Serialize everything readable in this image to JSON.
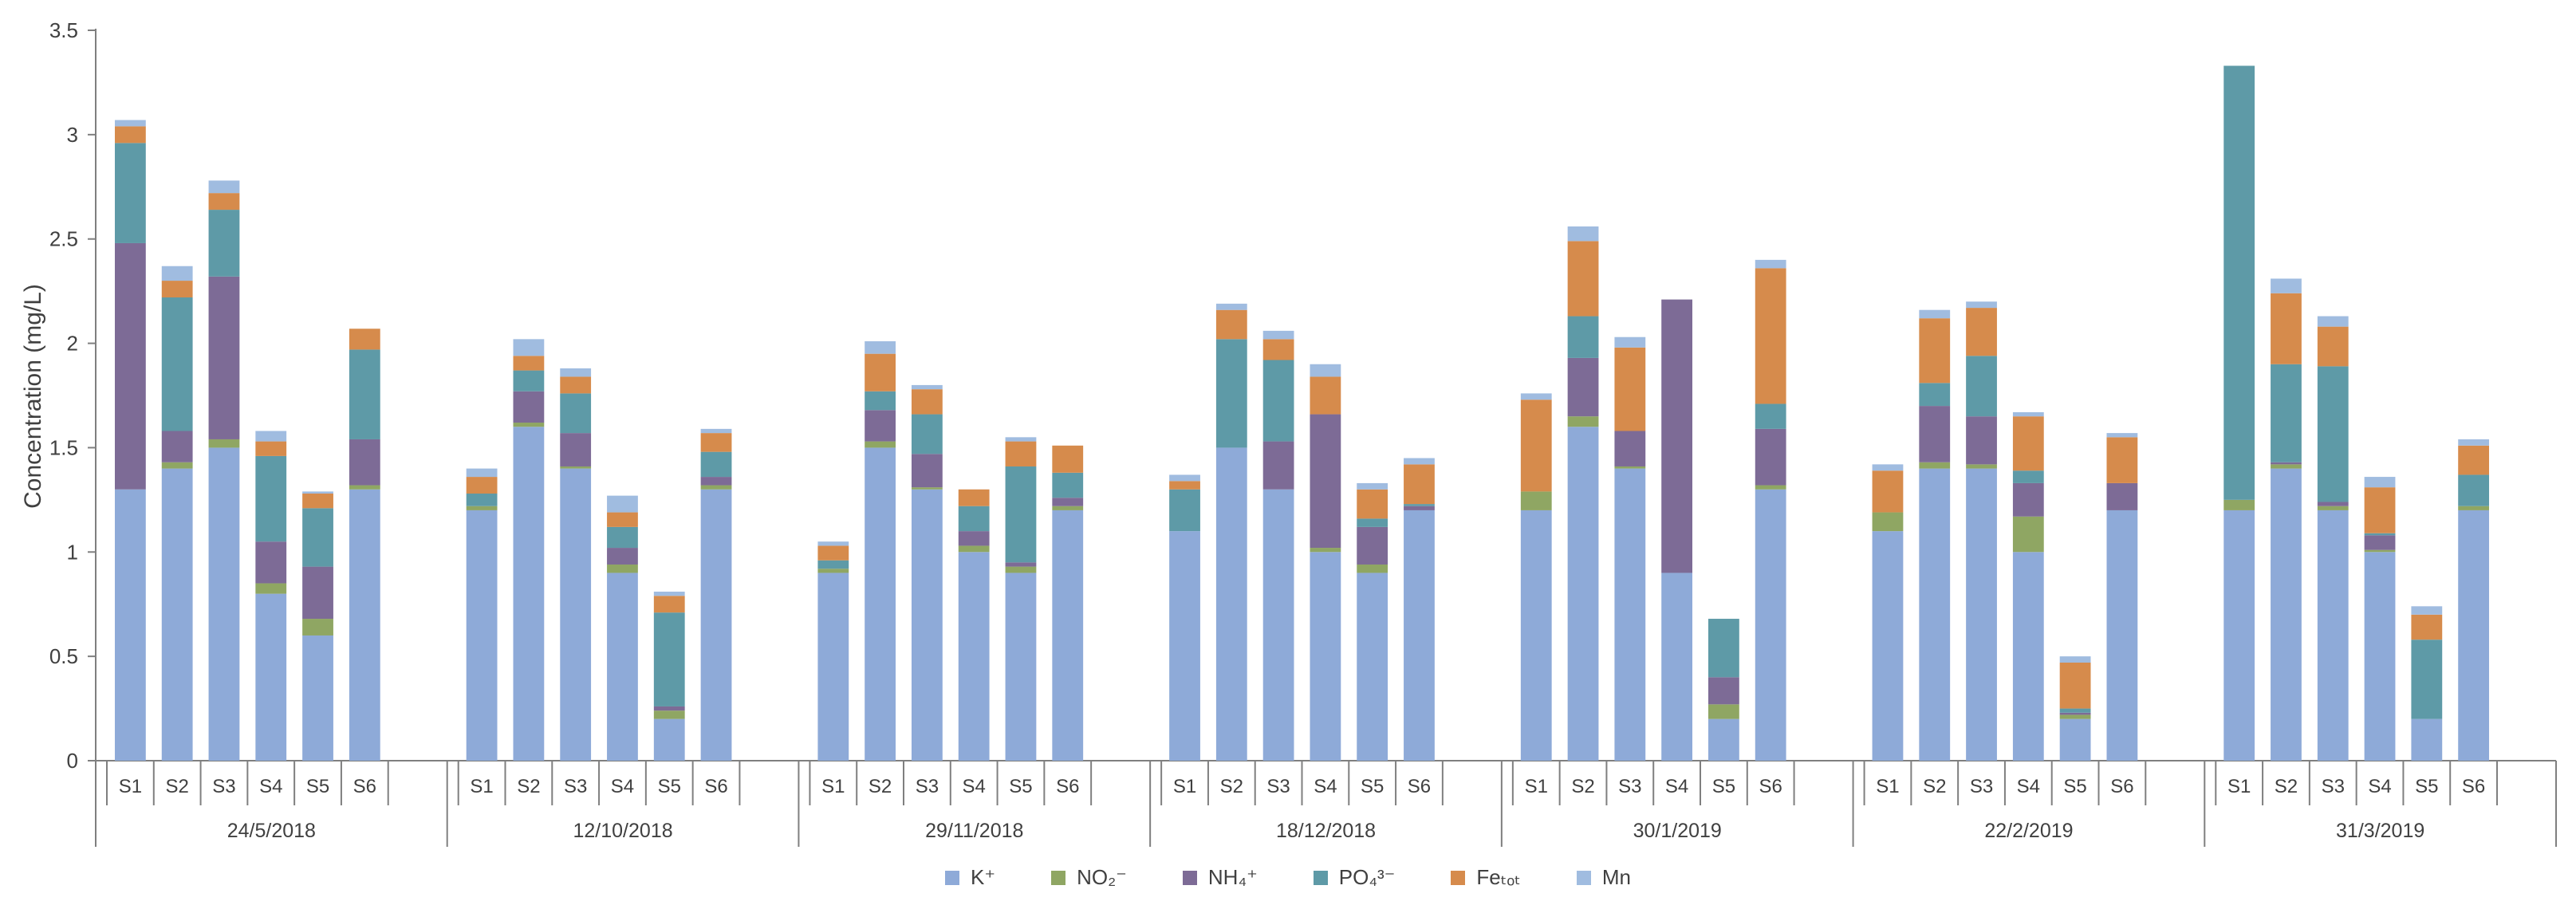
{
  "chart_data": {
    "type": "bar",
    "stacked": true,
    "ylabel": "Concentration (mg/L)",
    "ylim": [
      0,
      3.5
    ],
    "yticks": [
      "0",
      "0.5",
      "1",
      "1.5",
      "2",
      "2.5",
      "3",
      "3.5"
    ],
    "ytick_values": [
      0,
      0.5,
      1,
      1.5,
      2,
      2.5,
      3,
      3.5
    ],
    "grid": false,
    "legend_position": "bottom",
    "sites": [
      "S1",
      "S2",
      "S3",
      "S4",
      "S5",
      "S6"
    ],
    "groups": [
      {
        "label": "24/5/2018",
        "series_values": {
          "K": [
            1.3,
            1.4,
            1.5,
            0.8,
            0.6,
            1.3
          ],
          "NO2": [
            0.0,
            0.03,
            0.04,
            0.05,
            0.08,
            0.02
          ],
          "NH4": [
            1.18,
            0.15,
            0.78,
            0.2,
            0.25,
            0.22
          ],
          "PO4": [
            0.48,
            0.64,
            0.32,
            0.41,
            0.28,
            0.43
          ],
          "Fe": [
            0.08,
            0.08,
            0.08,
            0.07,
            0.07,
            0.1
          ],
          "Mn": [
            0.03,
            0.07,
            0.06,
            0.05,
            0.01,
            0.0
          ]
        }
      },
      {
        "label": "12/10/2018",
        "series_values": {
          "K": [
            1.2,
            1.6,
            1.4,
            0.9,
            0.2,
            1.3
          ],
          "NO2": [
            0.02,
            0.02,
            0.01,
            0.04,
            0.04,
            0.02
          ],
          "NH4": [
            0.0,
            0.15,
            0.16,
            0.08,
            0.02,
            0.04
          ],
          "PO4": [
            0.06,
            0.1,
            0.19,
            0.1,
            0.45,
            0.12
          ],
          "Fe": [
            0.08,
            0.07,
            0.08,
            0.07,
            0.08,
            0.09
          ],
          "Mn": [
            0.04,
            0.08,
            0.04,
            0.08,
            0.02,
            0.02
          ]
        }
      },
      {
        "label": "29/11/2018",
        "series_values": {
          "K": [
            0.9,
            1.5,
            1.3,
            1.0,
            0.9,
            1.2
          ],
          "NO2": [
            0.02,
            0.03,
            0.01,
            0.03,
            0.03,
            0.02
          ],
          "NH4": [
            0.0,
            0.15,
            0.16,
            0.07,
            0.02,
            0.04
          ],
          "PO4": [
            0.04,
            0.09,
            0.19,
            0.12,
            0.46,
            0.12
          ],
          "Fe": [
            0.07,
            0.18,
            0.12,
            0.08,
            0.12,
            0.13
          ],
          "Mn": [
            0.02,
            0.06,
            0.02,
            0.0,
            0.02,
            0.0
          ]
        }
      },
      {
        "label": "18/12/2018",
        "series_values": {
          "K": [
            1.1,
            1.5,
            1.3,
            1.0,
            0.9,
            1.2
          ],
          "NO2": [
            0.0,
            0.0,
            0.0,
            0.02,
            0.04,
            0.0
          ],
          "NH4": [
            0.0,
            0.0,
            0.23,
            0.64,
            0.18,
            0.02
          ],
          "PO4": [
            0.2,
            0.52,
            0.39,
            0.0,
            0.04,
            0.01
          ],
          "Fe": [
            0.04,
            0.14,
            0.1,
            0.18,
            0.14,
            0.19
          ],
          "Mn": [
            0.03,
            0.03,
            0.04,
            0.06,
            0.03,
            0.03
          ]
        }
      },
      {
        "label": "30/1/2019",
        "series_values": {
          "K": [
            1.2,
            1.6,
            1.4,
            0.9,
            0.2,
            1.3
          ],
          "NO2": [
            0.09,
            0.05,
            0.01,
            0.0,
            0.07,
            0.02
          ],
          "NH4": [
            0.0,
            0.28,
            0.17,
            1.31,
            0.13,
            0.27
          ],
          "PO4": [
            0.0,
            0.2,
            0.0,
            0.0,
            0.28,
            0.12
          ],
          "Fe": [
            0.44,
            0.36,
            0.4,
            0.0,
            0.0,
            0.65
          ],
          "Mn": [
            0.03,
            0.07,
            0.05,
            0.0,
            0.0,
            0.04
          ]
        }
      },
      {
        "label": "22/2/2019",
        "series_values": {
          "K": [
            1.1,
            1.4,
            1.4,
            1.0,
            0.2,
            1.2
          ],
          "NO2": [
            0.09,
            0.03,
            0.02,
            0.17,
            0.02,
            0.0
          ],
          "NH4": [
            0.0,
            0.27,
            0.23,
            0.16,
            0.01,
            0.13
          ],
          "PO4": [
            0.0,
            0.11,
            0.29,
            0.06,
            0.02,
            0.0
          ],
          "Fe": [
            0.2,
            0.31,
            0.23,
            0.26,
            0.22,
            0.22
          ],
          "Mn": [
            0.03,
            0.04,
            0.03,
            0.02,
            0.03,
            0.02
          ]
        }
      },
      {
        "label": "31/3/2019",
        "series_values": {
          "K": [
            1.2,
            1.4,
            1.2,
            1.0,
            0.2,
            1.2
          ],
          "NO2": [
            0.05,
            0.02,
            0.02,
            0.01,
            0.0,
            0.02
          ],
          "NH4": [
            0.0,
            0.01,
            0.02,
            0.07,
            0.0,
            0.0
          ],
          "PO4": [
            2.08,
            0.47,
            0.65,
            0.01,
            0.38,
            0.15
          ],
          "Fe": [
            0.0,
            0.34,
            0.19,
            0.22,
            0.12,
            0.14
          ],
          "Mn": [
            0.0,
            0.07,
            0.05,
            0.05,
            0.04,
            0.03
          ]
        }
      }
    ],
    "series": [
      {
        "key": "K",
        "name": "K⁺",
        "color": "#8eaad8"
      },
      {
        "key": "NO2",
        "name": "NO₂⁻",
        "color": "#8fa663"
      },
      {
        "key": "NH4",
        "name": "NH₄⁺",
        "color": "#7d6b96"
      },
      {
        "key": "PO4",
        "name": "PO₄³⁻",
        "color": "#5e9aa7"
      },
      {
        "key": "Fe",
        "name": "Feₜₒₜ",
        "color": "#d68b4c"
      },
      {
        "key": "Mn",
        "name": "Mn",
        "color": "#a0bce0"
      }
    ]
  }
}
